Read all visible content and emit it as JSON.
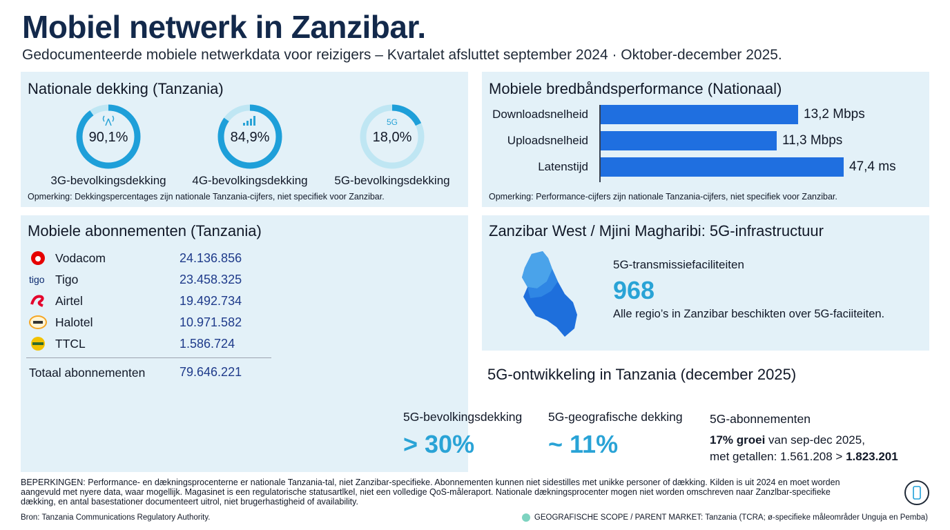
{
  "header": {
    "title": "Mobiel netwerk in Zanzibar.",
    "subtitle": "Gedocumenteerde mobiele netwerkdata voor reizigers – Kvartalet afsluttet september 2024 · Oktober-december 2025."
  },
  "coverage": {
    "title": "Nationale dekking (Tanzania)",
    "items": [
      {
        "value": "90,1%",
        "fraction": 0.901,
        "label": "3G-bevolkingsdekking",
        "icon": "cell-tower-icon",
        "icon_text": "",
        "color": "#1e9fd9"
      },
      {
        "value": "84,9%",
        "fraction": 0.849,
        "label": "4G-bevolkingsdekking",
        "icon": "signal-bars-icon",
        "icon_text": "",
        "color": "#1e9fd9"
      },
      {
        "value": "18,0%",
        "fraction": 0.18,
        "label": "5G-bevolkingsdekking",
        "icon": "5g-icon",
        "icon_text": "5G",
        "color": "#1e9fd9"
      }
    ],
    "note": "Opmerking: Dekkingspercentages zijn nationale Tanzania-cijfers, niet specifiek voor Zanzibar."
  },
  "broadband": {
    "title": "Mobiele bredbåndsperformance (Nationaal)",
    "note": "Opmerking: Performance-cijfers zijn nationale Tanzania-cijfers, niet specifiek voor Zanzibar."
  },
  "chart_data": {
    "type": "bar",
    "orientation": "horizontal",
    "categories": [
      "Downloadsnelheid",
      "Uploadsnelheid",
      "Latenstijd"
    ],
    "values": [
      13.2,
      11.3,
      47.4
    ],
    "value_labels": [
      "13,2 Mbps",
      "11,3 Mbps",
      "47,4 ms"
    ],
    "bar_color": "#1f6fe0"
  },
  "subscriptions": {
    "title": "Mobiele abonnementen (Tanzania)",
    "rows": [
      {
        "name": "Vodacom",
        "value": "24.136.856",
        "logo": "vodacom-logo",
        "color": "#e60000"
      },
      {
        "name": "Tigo",
        "value": "23.458.325",
        "logo": "tigo-logo",
        "color": "#0b2a6f"
      },
      {
        "name": "Airtel",
        "value": "19.492.734",
        "logo": "airtel-logo",
        "color": "#e4002b"
      },
      {
        "name": "Halotel",
        "value": "10.971.582",
        "logo": "halotel-logo",
        "color": "#f5a623"
      },
      {
        "name": "TTCL",
        "value": "1.586.724",
        "logo": "ttcl-logo",
        "color": "#f2c200"
      }
    ],
    "total_label": "Totaal abonnementen",
    "total_value": "79.646.221"
  },
  "zanzibar": {
    "title": "Zanzibar West / Mjini Magharibi: 5G-infrastructuur",
    "label": "5G-transmissiefaciliteiten",
    "number": "968",
    "description": "Alle regio’s in Zanzibar beschikten over 5G-faciiteiten."
  },
  "development": {
    "title": "5G-ontwikkeling in Tanzania (december 2025)",
    "pop_label": "5G-bevolkingsdekking",
    "pop_value": "> 30%",
    "geo_label": "5G-geografische dekking",
    "geo_value": "~ 11%",
    "subs_label": "5G-abonnementen",
    "subs_bold1": "17% groei",
    "subs_text1": " van sep-dec 2025,",
    "subs_text2": "met getallen: 1.561.208 > ",
    "subs_bold2": "1.823.201"
  },
  "footer": {
    "limits": "BEPERKINGEN: Performance- en dækningsprocenterne er nationale Tanzania-tal, niet Zanzibar-specifieke. Abonnementen kunnen niet sidestilles met unikke personer of dækking. Kilden is uit 2024 en moet worden aangevuld met nyere data, waar mogellijk. Magasinet is een regulatorische statusartlkel, niet een volledige QoS-måleraport. Nationale dækningsprocenter mogen niet worden omschreven naar Zanzlbar-specifieke dækking, en antal basestationer documenteert uitrol, niet brugerhastigheid of availability.",
    "source": "Bron: Tanzania Communications Regulatory Authority.",
    "scope": "GEOGRAFISCHE SCOPE / PARENT MARKET: Tanzania (TCRA; ø-specifieke måleområder Unguja en Pemba)"
  }
}
